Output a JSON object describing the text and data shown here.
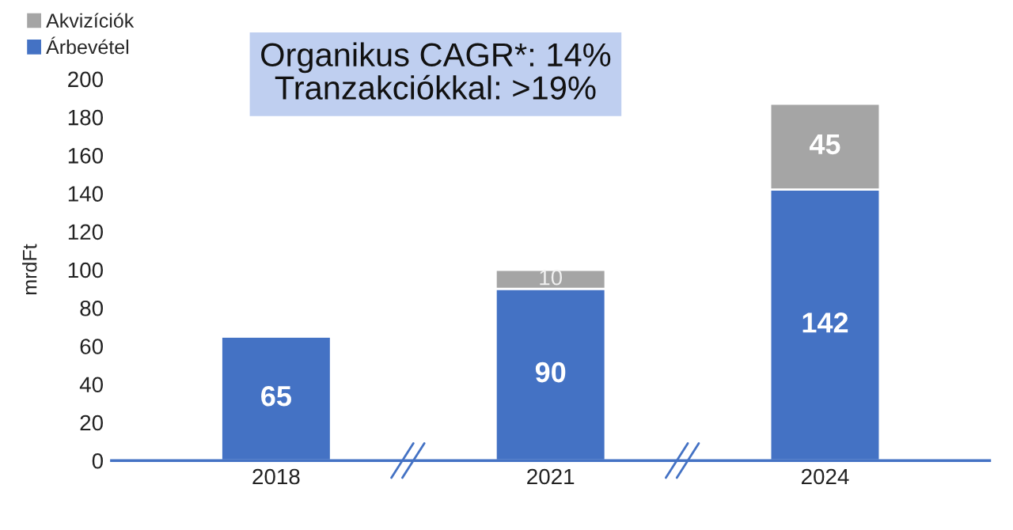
{
  "chart_data": {
    "type": "bar",
    "stacked": true,
    "ylabel": "mrdFt",
    "categories": [
      "2018",
      "2021",
      "2024"
    ],
    "series": [
      {
        "name": "Árbevétel",
        "color": "#4472c4",
        "values": [
          65,
          90,
          142
        ],
        "value_labels": [
          "65",
          "90",
          "142"
        ]
      },
      {
        "name": "Akvizíciók",
        "color": "#a5a5a5",
        "values": [
          null,
          10,
          45
        ],
        "value_labels": [
          null,
          "10",
          "45"
        ]
      }
    ],
    "ylim": [
      0,
      200
    ],
    "yticks": [
      0,
      20,
      40,
      60,
      80,
      100,
      120,
      140,
      160,
      180,
      200
    ],
    "grid": false,
    "legend": "top left",
    "annotations": [
      "Organikus CAGR*: 14%",
      "Tranzakciókkal: >19%"
    ]
  }
}
